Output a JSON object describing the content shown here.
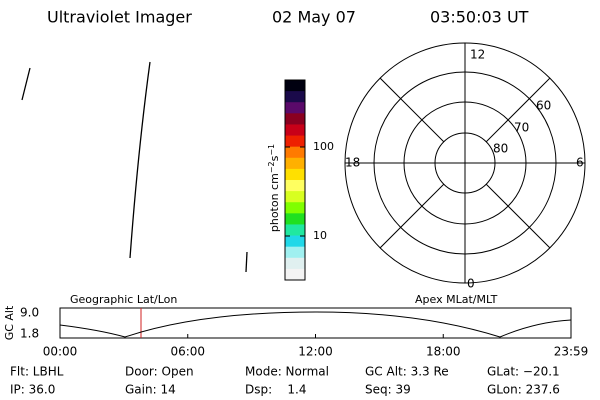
{
  "header": {
    "title": "Ultraviolet Imager",
    "date": "02 May 07",
    "time": "03:50:03 UT"
  },
  "colorbar": {
    "label": "photon cm",
    "exp1": "−2",
    "unit2": "s",
    "exp2": "−1",
    "ticks": [
      "100",
      "10"
    ],
    "colors": [
      "#000010",
      "#1a0a4a",
      "#5a0a6a",
      "#8a0020",
      "#c80018",
      "#ee2000",
      "#ff7a00",
      "#ffb000",
      "#ffe000",
      "#ffff60",
      "#d8ff20",
      "#80ff00",
      "#20e020",
      "#20e8a0",
      "#20d8e8",
      "#a0f0f0",
      "#e0f0f0",
      "#f4f4f4"
    ]
  },
  "polar": {
    "mlt_labels": [
      "12",
      "6",
      "0",
      "18"
    ],
    "lat_labels": [
      "60",
      "70",
      "80"
    ]
  },
  "strip": {
    "left_title": "Geographic Lat/Lon",
    "right_title": "Apex MLat/MLT",
    "ylabel": "GC Alt",
    "yticks": [
      "9.0",
      "1.8"
    ],
    "xticks": [
      "00:00",
      "06:00",
      "12:00",
      "18:00",
      "23:59"
    ]
  },
  "footer": {
    "rows": [
      [
        "Flt: LBHL",
        "Door: Open",
        "Mode: Normal",
        "GC Alt: 3.3 Re",
        "GLat: −20.1"
      ],
      [
        "IP: 36.0",
        "Gain: 14",
        "Dsp:    1.4",
        "Seq: 39",
        "GLon: 237.6"
      ]
    ]
  }
}
